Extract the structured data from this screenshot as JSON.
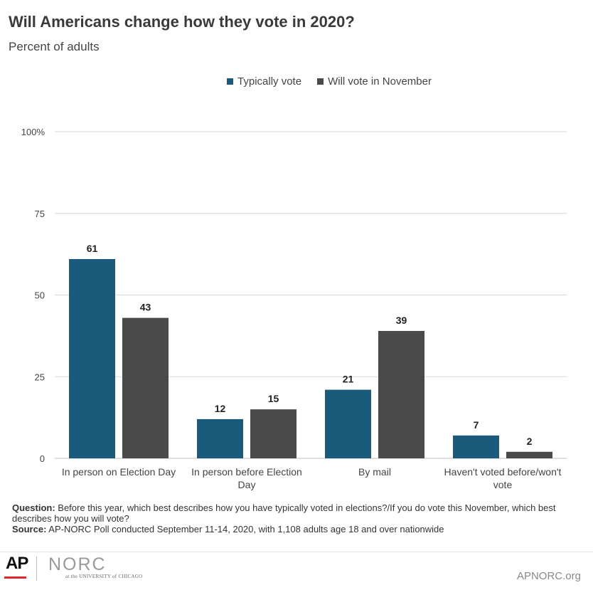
{
  "title": "Will Americans change how they vote in 2020?",
  "subtitle": "Percent of adults",
  "colors": {
    "typically": "#1a5a7a",
    "november": "#4a4a4a",
    "grid": "#d9d9d9",
    "axis": "#bfbfbf"
  },
  "chart_data": {
    "type": "bar",
    "categories": [
      [
        "In person on Election Day"
      ],
      [
        "In person before Election",
        "Day"
      ],
      [
        "By mail"
      ],
      [
        "Haven't voted before/won't",
        "vote"
      ]
    ],
    "series": [
      {
        "name": "Typically vote",
        "values": [
          61,
          12,
          21,
          7
        ]
      },
      {
        "name": "Will vote in November",
        "values": [
          43,
          15,
          39,
          2
        ]
      }
    ],
    "ylim": [
      0,
      100
    ],
    "yticks": [
      0,
      25,
      50,
      75,
      100
    ],
    "ytick_labels": [
      "0",
      "25",
      "50",
      "75",
      "100%"
    ],
    "grid": true,
    "legend": "top"
  },
  "notes": {
    "question_label": "Question:",
    "question_text": " Before this year, which best describes how you have typically voted in elections?/If you do vote this November, which best describes how you will vote?",
    "source_label": "Source:",
    "source_text": " AP-NORC Poll conducted September 11-14, 2020, with 1,108 adults age 18 and over nationwide"
  },
  "footer": {
    "ap_logo": "AP",
    "norc_logo": "NORC",
    "norc_sub": "at the UNIVERSITY of CHICAGO",
    "site": "APNORC.org"
  }
}
